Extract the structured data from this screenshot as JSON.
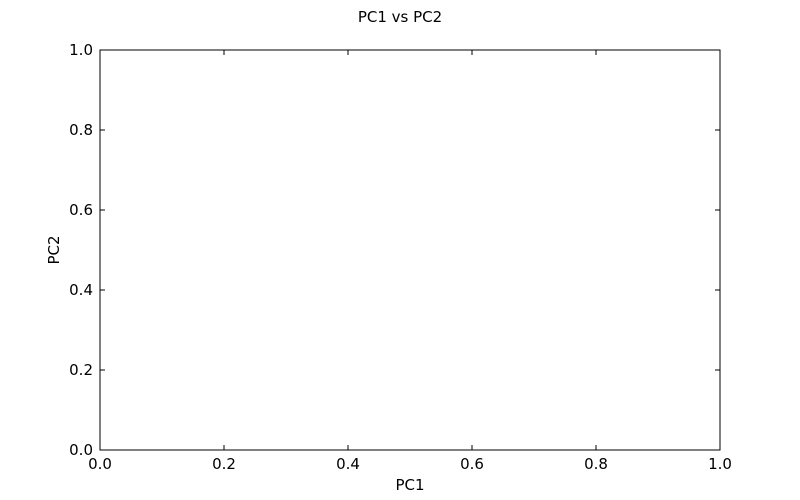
{
  "chart_data": {
    "type": "scatter",
    "title": "PC1 vs PC2",
    "xlabel": "PC1",
    "ylabel": "PC2",
    "xlim": [
      0.0,
      1.0
    ],
    "ylim": [
      0.0,
      1.0
    ],
    "xticks": [
      "0.0",
      "0.2",
      "0.4",
      "0.6",
      "0.8",
      "1.0"
    ],
    "yticks": [
      "0.0",
      "0.2",
      "0.4",
      "0.6",
      "0.8",
      "1.0"
    ],
    "series": [],
    "grid": false,
    "legend": "none"
  }
}
